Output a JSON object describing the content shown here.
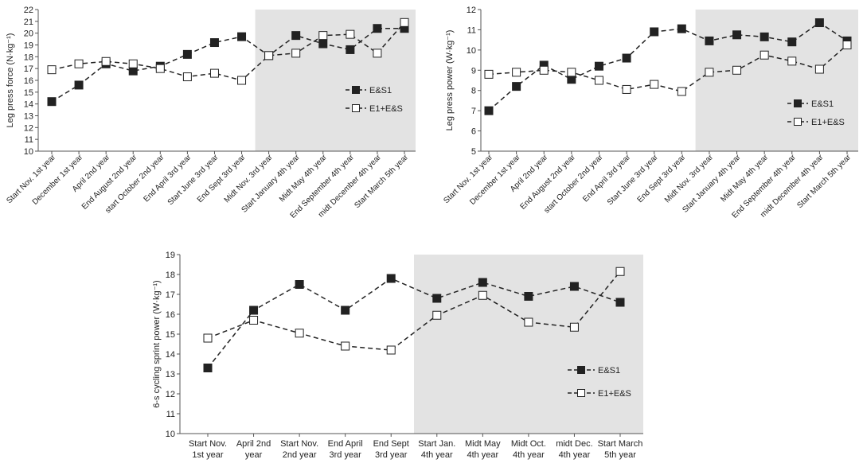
{
  "chart_data": [
    {
      "type": "line",
      "ylabel": "Leg press force (N·kg⁻¹)",
      "ylim": [
        10,
        22
      ],
      "ytick_step": 1,
      "categories": [
        "Start Nov. 1st year",
        "December 1st year",
        "April 2nd year",
        "End August 2nd year",
        "start October 2nd year",
        "End April 3rd year",
        "Start June 3rd year",
        "End Sept 3rd year",
        "Midt Nov. 3rd year",
        "Start January 4th year",
        "Midt May 4th year",
        "End September 4th year",
        "midt December 4th year",
        "Start March 5th year"
      ],
      "shaded_from_index": 8,
      "legend_position": "middle-right",
      "series": [
        {
          "name": "E&S1",
          "marker": "filled",
          "values": [
            14.2,
            15.6,
            17.4,
            16.8,
            17.2,
            18.2,
            19.2,
            19.7,
            18.1,
            19.8,
            19.1,
            18.6,
            20.4,
            20.4
          ]
        },
        {
          "name": "E1+E&S",
          "marker": "open",
          "values": [
            16.9,
            17.4,
            17.6,
            17.4,
            17.0,
            16.3,
            16.6,
            16.0,
            18.1,
            18.3,
            19.8,
            19.9,
            18.3,
            20.9
          ]
        }
      ]
    },
    {
      "type": "line",
      "ylabel": "Leg press power (W·kg⁻¹)",
      "ylim": [
        5,
        12
      ],
      "ytick_step": 1,
      "categories": [
        "Start Nov. 1st year",
        "December 1st year",
        "April 2nd year",
        "End August 2nd year",
        "start October 2nd year",
        "End April 3rd year",
        "Start June 3rd year",
        "End Sept 3rd year",
        "Midt Nov. 3rd year",
        "Start January 4th year",
        "Midt May 4th year",
        "End September 4th year",
        "midt December 4th year",
        "Start March 5th year"
      ],
      "shaded_from_index": 8,
      "legend_position": "middle-right",
      "series": [
        {
          "name": "E&S1",
          "marker": "filled",
          "values": [
            7.0,
            8.2,
            9.25,
            8.55,
            9.2,
            9.6,
            10.9,
            11.05,
            10.45,
            10.75,
            10.65,
            10.4,
            11.35,
            10.45
          ]
        },
        {
          "name": "E1+E&S",
          "marker": "open",
          "values": [
            8.8,
            8.9,
            9.0,
            8.9,
            8.5,
            8.05,
            8.3,
            7.95,
            8.9,
            9.0,
            9.75,
            9.45,
            9.05,
            10.25
          ]
        }
      ]
    },
    {
      "type": "line",
      "ylabel": "6-s cycling sprint power (W·kg⁻¹)",
      "ylim": [
        10,
        19
      ],
      "ytick_step": 1,
      "categories": [
        [
          "Start Nov.",
          "1st year"
        ],
        [
          "April 2nd",
          "year"
        ],
        [
          "Start Nov.",
          "2nd year"
        ],
        [
          "End April",
          "3rd year"
        ],
        [
          "End Sept",
          "3rd year"
        ],
        [
          "Start Jan.",
          "4th year"
        ],
        [
          "Midt May",
          "4th year"
        ],
        [
          "Midt Oct.",
          "4th year"
        ],
        [
          "midt Dec.",
          "4th year"
        ],
        [
          "Start March",
          "5th year"
        ]
      ],
      "shaded_from_index": 5,
      "legend_position": "middle-right",
      "series": [
        {
          "name": "E&S1",
          "marker": "filled",
          "values": [
            13.3,
            16.2,
            17.5,
            16.2,
            17.8,
            16.8,
            17.6,
            16.9,
            17.4,
            16.6
          ]
        },
        {
          "name": "E1+E&S",
          "marker": "open",
          "values": [
            14.8,
            15.7,
            15.05,
            14.4,
            14.2,
            15.95,
            16.95,
            15.6,
            15.35,
            18.15
          ]
        }
      ]
    }
  ]
}
